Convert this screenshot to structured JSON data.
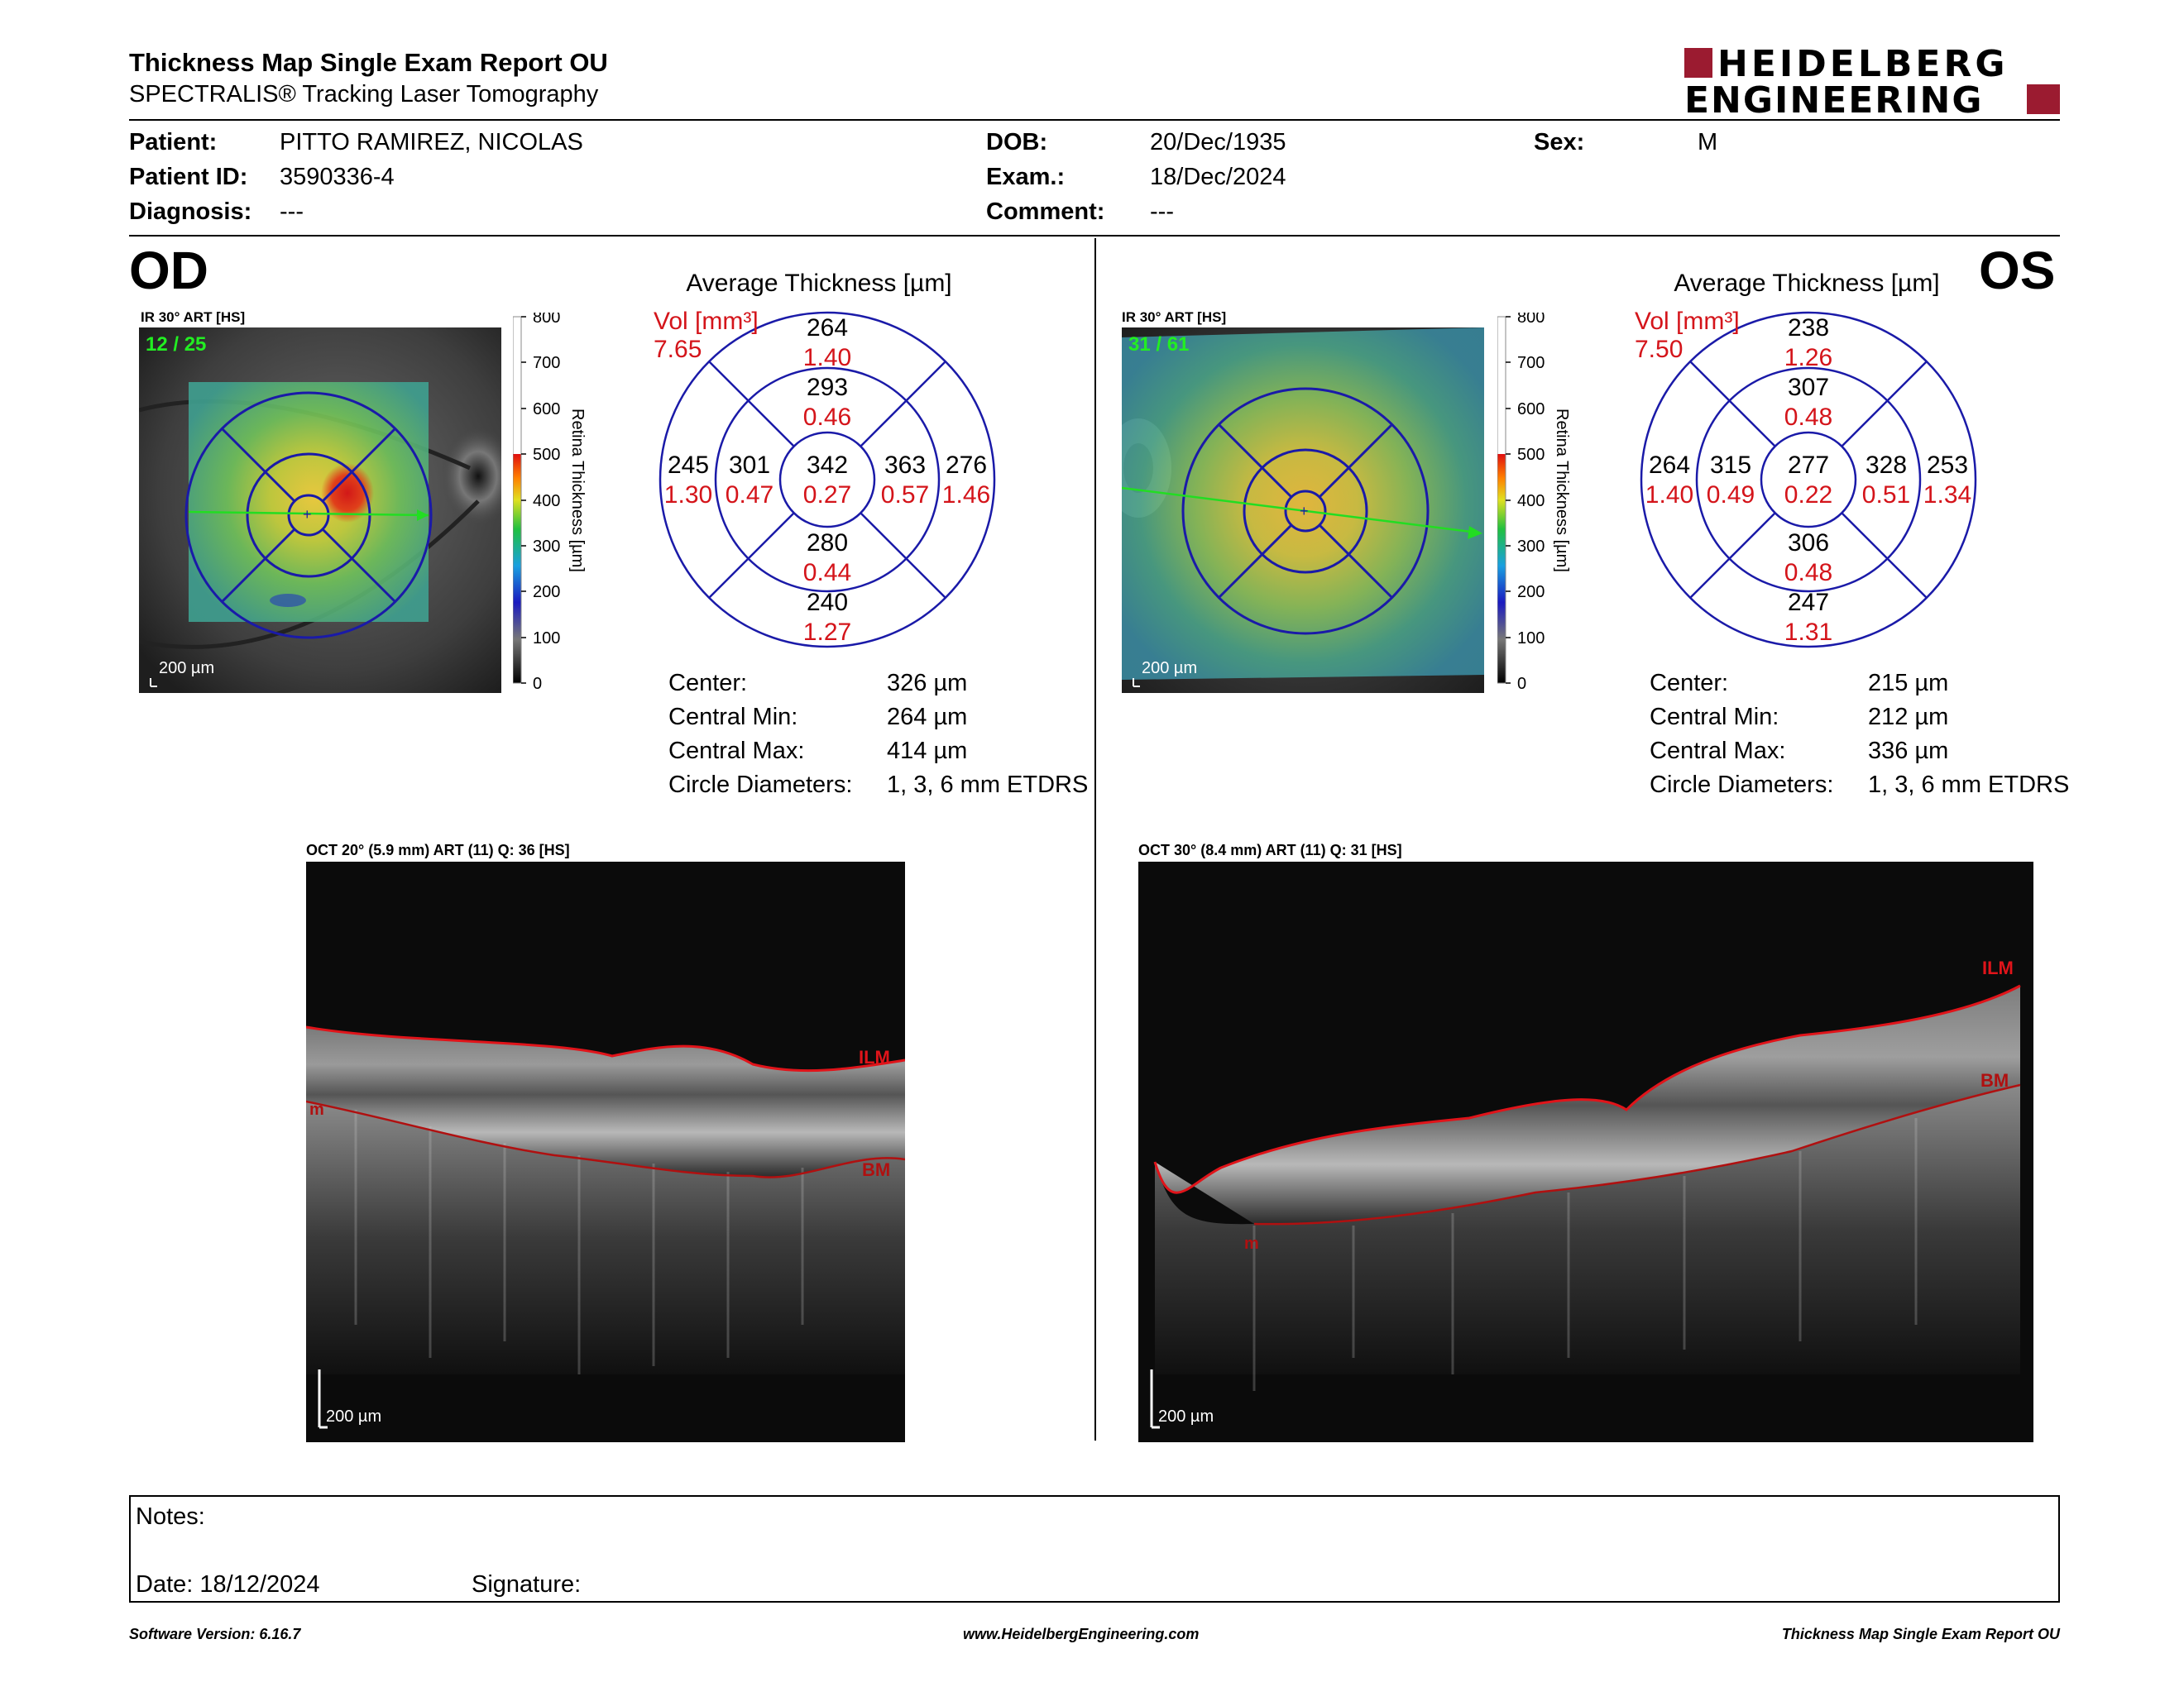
{
  "header": {
    "title": "Thickness Map Single Exam Report OU",
    "subtitle": "SPECTRALIS® Tracking Laser Tomography",
    "logo_line1": "HEIDELBERG",
    "logo_line2": "ENGINEERING",
    "brand_color": "#9b1b30"
  },
  "patient": {
    "patient_label": "Patient:",
    "patient_value": "PITTO RAMIREZ, NICOLAS",
    "id_label": "Patient ID:",
    "id_value": "3590336-4",
    "diagnosis_label": "Diagnosis:",
    "diagnosis_value": "---",
    "dob_label": "DOB:",
    "dob_value": "20/Dec/1935",
    "exam_label": "Exam.:",
    "exam_value": "18/Dec/2024",
    "comment_label": "Comment:",
    "comment_value": "---",
    "sex_label": "Sex:",
    "sex_value": "M"
  },
  "od": {
    "eye": "OD",
    "ir_label": "IR 30° ART [HS]",
    "frames": "12 / 25",
    "scale": "200 µm",
    "colorbar_ticks": [
      "800",
      "700",
      "600",
      "500",
      "400",
      "300",
      "200",
      "100",
      "0"
    ],
    "colorbar_title": "Retina Thickness [µm]",
    "avg_title": "Average Thickness [µm]",
    "vol_label": "Vol [mm³]",
    "vol_value": "7.65",
    "sectors": {
      "outer_sup": {
        "t": "264",
        "v": "1.40"
      },
      "inner_sup": {
        "t": "293",
        "v": "0.46"
      },
      "outer_left": {
        "t": "245",
        "v": "1.30"
      },
      "inner_left": {
        "t": "301",
        "v": "0.47"
      },
      "center": {
        "t": "342",
        "v": "0.27"
      },
      "inner_right": {
        "t": "363",
        "v": "0.57"
      },
      "outer_right": {
        "t": "276",
        "v": "1.46"
      },
      "inner_inf": {
        "t": "280",
        "v": "0.44"
      },
      "outer_inf": {
        "t": "240",
        "v": "1.27"
      }
    },
    "stats": [
      {
        "label": "Center:",
        "value": "326 µm"
      },
      {
        "label": "Central Min:",
        "value": "264 µm"
      },
      {
        "label": "Central Max:",
        "value": "414 µm"
      },
      {
        "label": "Circle Diameters:",
        "value": "1, 3, 6 mm ETDRS"
      }
    ],
    "oct_label": "OCT 20° (5.9 mm) ART (11) Q: 36 [HS]",
    "oct_scale": "200 µm",
    "ilm": "ILM",
    "bm": "BM",
    "m": "m"
  },
  "os": {
    "eye": "OS",
    "ir_label": "IR 30° ART [HS]",
    "frames": "31 / 61",
    "scale": "200 µm",
    "colorbar_ticks": [
      "800",
      "700",
      "600",
      "500",
      "400",
      "300",
      "200",
      "100",
      "0"
    ],
    "colorbar_title": "Retina Thickness [µm]",
    "avg_title": "Average Thickness [µm]",
    "vol_label": "Vol [mm³]",
    "vol_value": "7.50",
    "sectors": {
      "outer_sup": {
        "t": "238",
        "v": "1.26"
      },
      "inner_sup": {
        "t": "307",
        "v": "0.48"
      },
      "outer_left": {
        "t": "264",
        "v": "1.40"
      },
      "inner_left": {
        "t": "315",
        "v": "0.49"
      },
      "center": {
        "t": "277",
        "v": "0.22"
      },
      "inner_right": {
        "t": "328",
        "v": "0.51"
      },
      "outer_right": {
        "t": "253",
        "v": "1.34"
      },
      "inner_inf": {
        "t": "306",
        "v": "0.48"
      },
      "outer_inf": {
        "t": "247",
        "v": "1.31"
      }
    },
    "stats": [
      {
        "label": "Center:",
        "value": "215 µm"
      },
      {
        "label": "Central Min:",
        "value": "212 µm"
      },
      {
        "label": "Central Max:",
        "value": "336 µm"
      },
      {
        "label": "Circle Diameters:",
        "value": "1, 3, 6 mm ETDRS"
      }
    ],
    "oct_label": "OCT 30° (8.4 mm) ART (11) Q: 31 [HS]",
    "oct_scale": "200 µm",
    "ilm": "ILM",
    "bm": "BM",
    "m": "m"
  },
  "notes": {
    "notes_label": "Notes:",
    "date_label": "Date: 18/12/2024",
    "signature_label": "Signature:"
  },
  "footer": {
    "left": "Software Version: 6.16.7",
    "center": "www.HeidelbergEngineering.com",
    "right": "Thickness Map Single Exam Report OU"
  },
  "colors": {
    "ring": "#1a1aa8",
    "volume_red": "#d4141a",
    "ilm_red": "#e0141a",
    "bm_red": "#b01010",
    "scan_line": "#22dd22"
  }
}
